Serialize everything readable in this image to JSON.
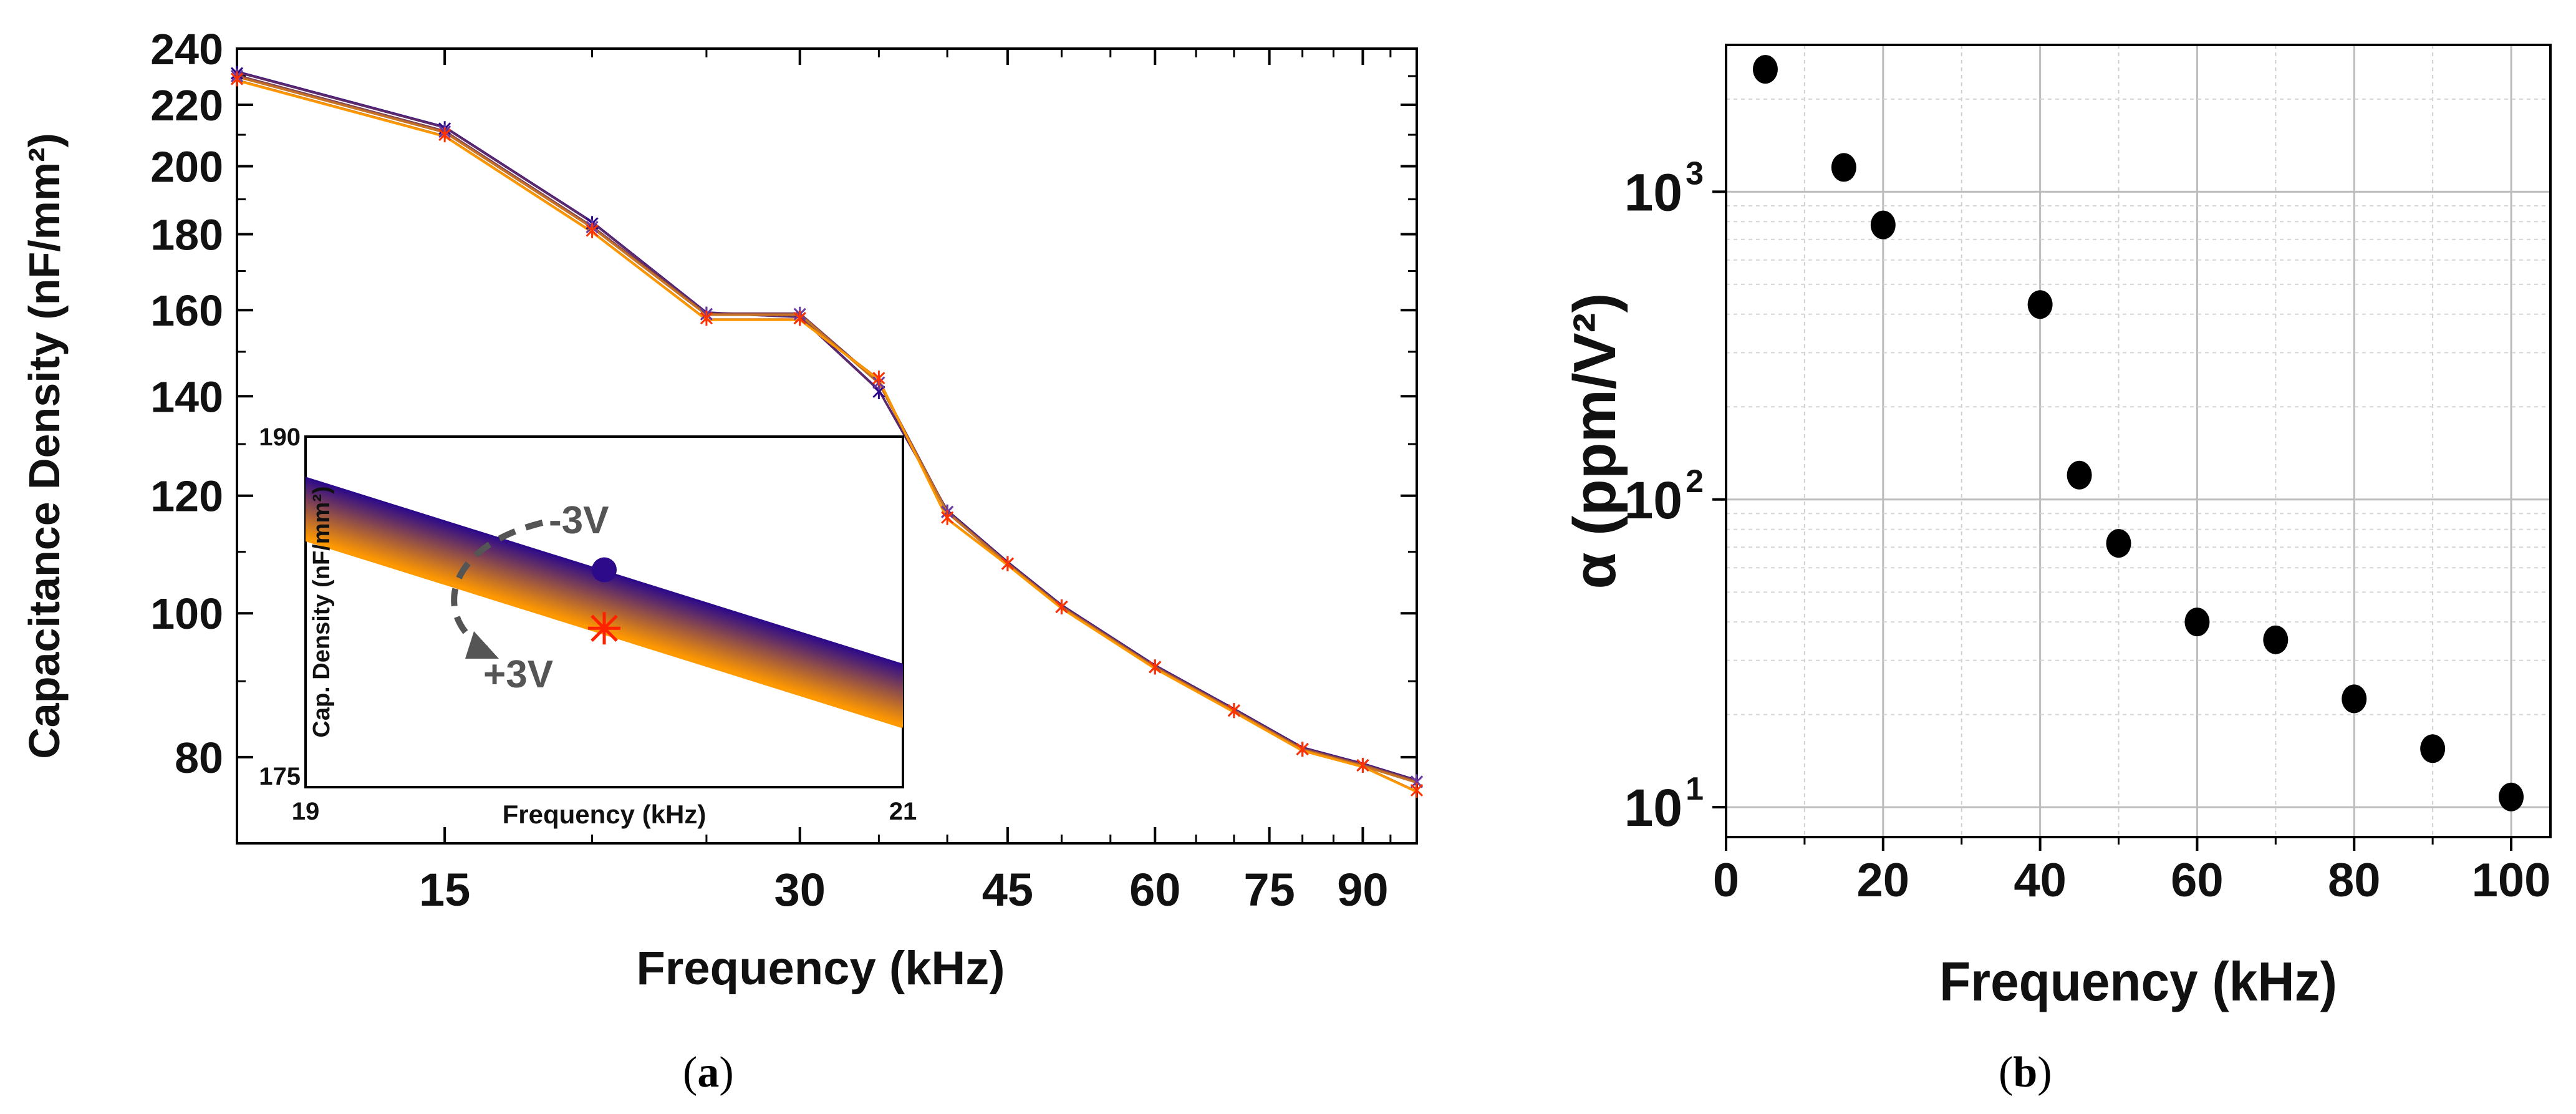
{
  "captions": {
    "a": "a",
    "b": "b"
  },
  "chart_data": [
    {
      "type": "line",
      "title": "",
      "xlabel": "Frequency (kHz)",
      "ylabel": "Capacitance Density (nF/mm²)",
      "xscale": "log",
      "yscale": "log",
      "xlim": [
        10,
        100
      ],
      "ylim": [
        70,
        240
      ],
      "xticks": [
        15,
        30,
        45,
        60,
        75,
        90
      ],
      "xtick_labels": [
        "15",
        "30",
        "45",
        "60",
        "75",
        "90"
      ],
      "yticks": [
        80,
        100,
        120,
        140,
        160,
        180,
        200,
        220,
        240
      ],
      "ytick_labels": [
        "80",
        "100",
        "120",
        "140",
        "160",
        "180",
        "200",
        "220",
        "240"
      ],
      "x": [
        10,
        15,
        20,
        25,
        30,
        35,
        40,
        45,
        50,
        60,
        70,
        80,
        90,
        100
      ],
      "series_count": 31,
      "series_color_range": [
        "#2d0a8a",
        "#ff9900"
      ],
      "series": [
        {
          "values": [
            231,
            212,
            183,
            159,
            158,
            141,
            117,
            108,
            101,
            92,
            86,
            81,
            79,
            77
          ]
        },
        {
          "values": [
            230,
            211,
            182,
            159,
            159,
            143,
            117,
            108,
            101,
            92,
            86,
            81,
            79,
            77
          ]
        },
        {
          "values": [
            229,
            210,
            181,
            158,
            158,
            144,
            116,
            108,
            101,
            92,
            86,
            81,
            79,
            76
          ]
        }
      ],
      "grid": false,
      "inset": {
        "xlabel": "Frequency (kHz)",
        "ylabel": "Cap. Density (nF/mm²)",
        "xlim": [
          19,
          21
        ],
        "ylim": [
          175,
          190
        ],
        "xtick_labels": [
          "19",
          "21"
        ],
        "ytick_labels": [
          "175",
          "190"
        ],
        "annotation_top": "-3V",
        "annotation_bottom": "+3V"
      }
    },
    {
      "type": "scatter",
      "title": "",
      "xlabel": "Frequency (kHz)",
      "ylabel": "α (ppm/V²)",
      "yscale": "log",
      "xlim": [
        0,
        105
      ],
      "ylim": [
        8,
        3000
      ],
      "xticks": [
        0,
        20,
        40,
        60,
        80,
        100
      ],
      "xtick_labels": [
        "0",
        "20",
        "40",
        "60",
        "80",
        "100"
      ],
      "yticks": [
        10,
        100,
        1000
      ],
      "ytick_labels": [
        "10",
        "10",
        "10"
      ],
      "ytick_exponents": [
        "1",
        "2",
        "3"
      ],
      "x": [
        5,
        15,
        20,
        40,
        45,
        50,
        60,
        70,
        80,
        90,
        100
      ],
      "y": [
        2500,
        1200,
        780,
        430,
        120,
        72,
        40,
        35,
        22.5,
        15.5,
        10.8
      ],
      "grid": true
    }
  ]
}
